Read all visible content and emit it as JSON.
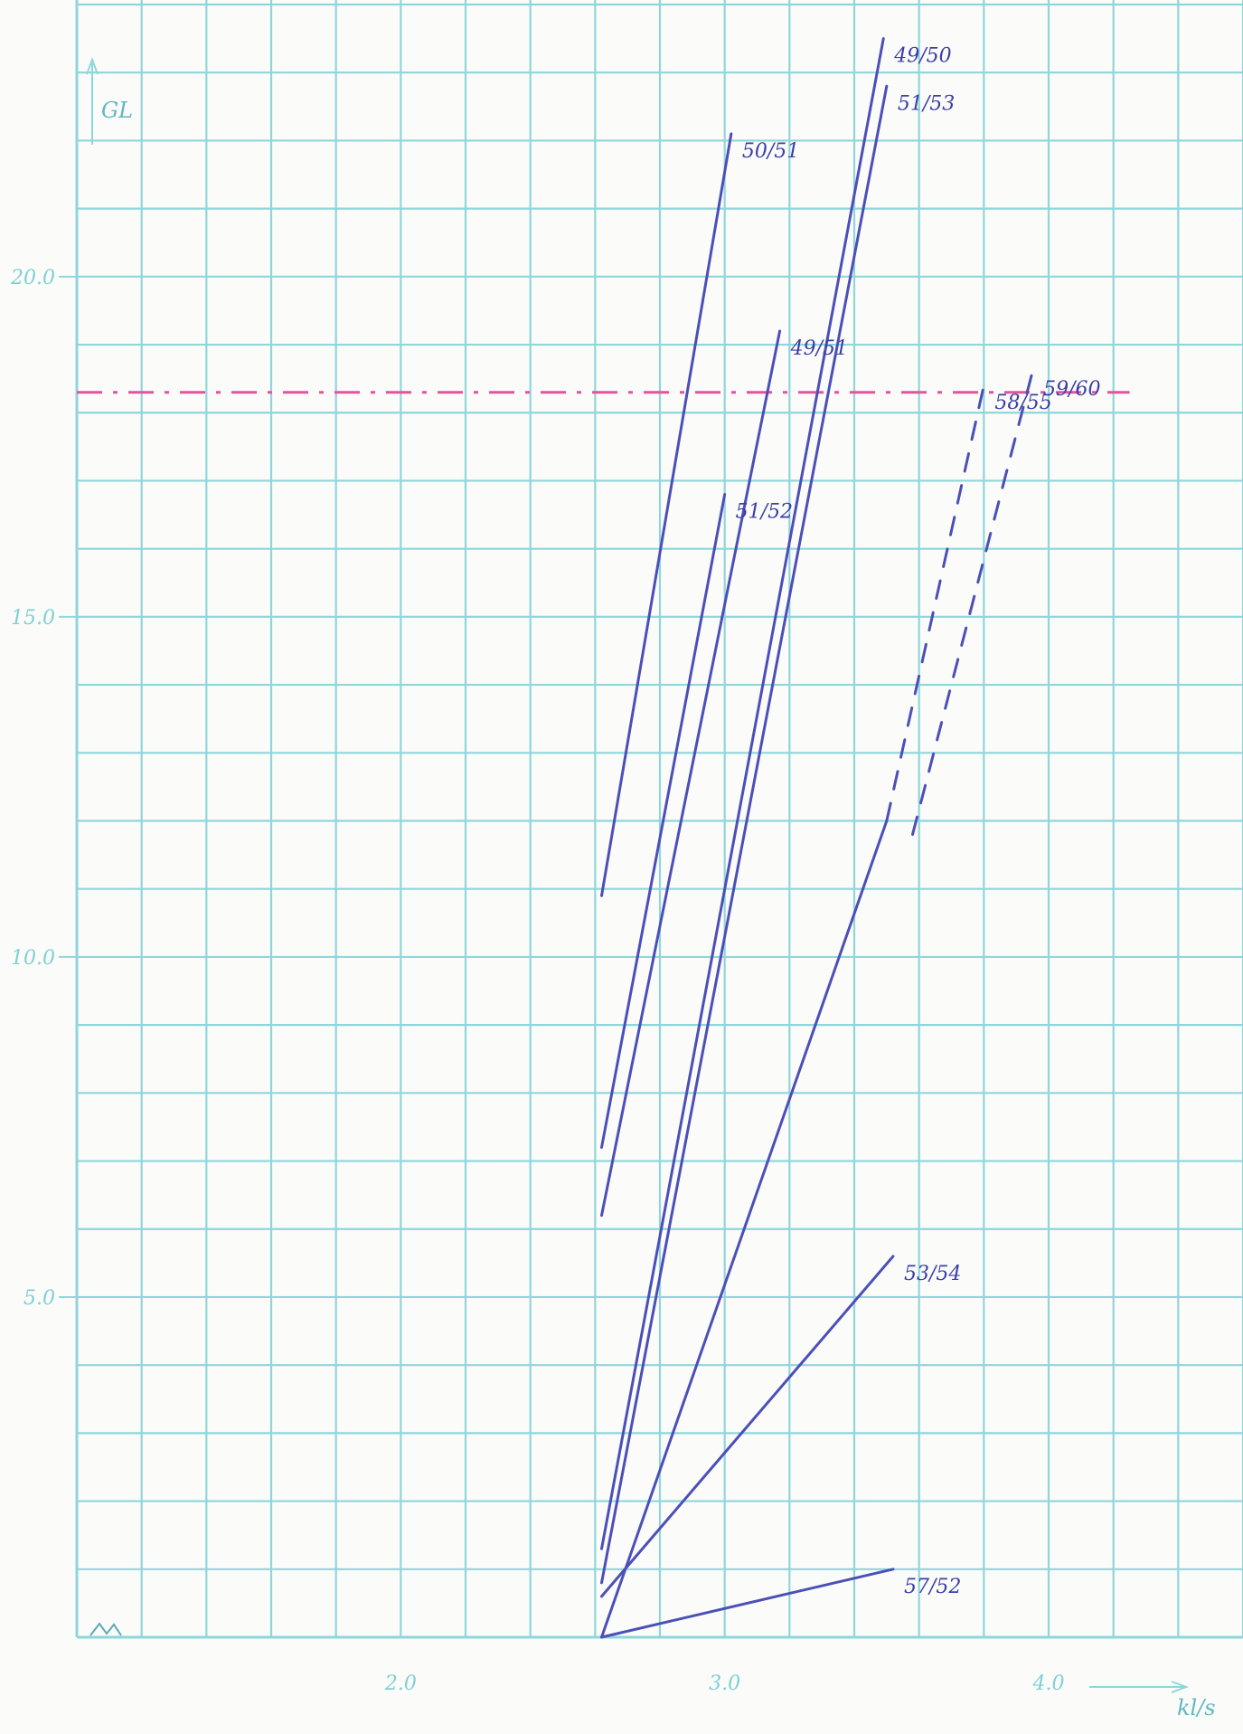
{
  "chart_data": {
    "type": "line",
    "title": "",
    "xlabel": "kl/s",
    "ylabel": "GL",
    "xlim": [
      1.0,
      4.6
    ],
    "ylim": [
      0.0,
      24.0
    ],
    "x_ticks": [
      {
        "value": 2.0,
        "label": "2.0"
      },
      {
        "value": 3.0,
        "label": "3.0"
      },
      {
        "value": 4.0,
        "label": "4.0"
      }
    ],
    "y_ticks": [
      {
        "value": 5.0,
        "label": "5.0"
      },
      {
        "value": 10.0,
        "label": "10.0"
      },
      {
        "value": 15.0,
        "label": "15.0"
      },
      {
        "value": 20.0,
        "label": "20.0"
      }
    ],
    "grid": true,
    "reference_line": {
      "y": 18.3,
      "style": "dash-dot",
      "color": "#e0559c",
      "x_range": [
        1.0,
        4.25
      ]
    },
    "series": [
      {
        "name": "50/51",
        "style": "solid",
        "points": [
          [
            2.62,
            10.9
          ],
          [
            3.02,
            22.1
          ]
        ]
      },
      {
        "name": "49/50",
        "style": "solid",
        "points": [
          [
            2.62,
            1.3
          ],
          [
            3.49,
            23.5
          ]
        ]
      },
      {
        "name": "51/53",
        "style": "solid",
        "points": [
          [
            2.62,
            0.8
          ],
          [
            3.5,
            22.8
          ]
        ]
      },
      {
        "name": "49/51",
        "style": "solid",
        "points": [
          [
            2.62,
            6.2
          ],
          [
            3.17,
            19.2
          ]
        ]
      },
      {
        "name": "51/52",
        "style": "solid",
        "points": [
          [
            2.62,
            7.2
          ],
          [
            3.0,
            16.8
          ]
        ]
      },
      {
        "name": "",
        "style": "solid",
        "points": [
          [
            2.62,
            0.0
          ],
          [
            3.5,
            12.0
          ]
        ]
      },
      {
        "name": "53/54",
        "style": "solid",
        "points": [
          [
            2.62,
            0.6
          ],
          [
            3.52,
            5.6
          ]
        ]
      },
      {
        "name": "57/52",
        "style": "solid",
        "points": [
          [
            2.62,
            0.0
          ],
          [
            3.52,
            1.0
          ]
        ]
      },
      {
        "name": "58/55",
        "style": "dashed",
        "points": [
          [
            3.5,
            12.0
          ],
          [
            3.8,
            18.4
          ]
        ]
      },
      {
        "name": "59/60",
        "style": "dashed",
        "points": [
          [
            3.58,
            11.8
          ],
          [
            3.95,
            18.6
          ]
        ]
      }
    ]
  },
  "colors": {
    "grid": "#8fd6da",
    "grid_minor": "#bfe9ea",
    "line": "#4c4fb8",
    "reference": "#e0559c",
    "tick_text": "#7fcfd6",
    "background": "#fbfcf9"
  }
}
